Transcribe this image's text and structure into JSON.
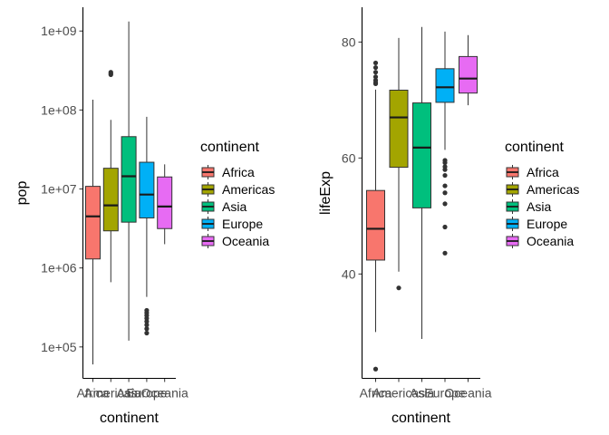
{
  "chart_data": [
    {
      "type": "box",
      "xlabel": "continent",
      "ylabel": "pop",
      "scale": "log10",
      "ylim": [
        40000,
        2000000000
      ],
      "y_ticks": [
        {
          "value": 100000,
          "label": "1e+05"
        },
        {
          "value": 1000000,
          "label": "1e+06"
        },
        {
          "value": 10000000,
          "label": "1e+07"
        },
        {
          "value": 100000000,
          "label": "1e+08"
        },
        {
          "value": 1000000000,
          "label": "1e+09"
        }
      ],
      "categories": [
        "Africa",
        "Americas",
        "Asia",
        "Europe",
        "Oceania"
      ],
      "boxes": [
        {
          "category": "Africa",
          "min": 60000,
          "q1": 1300000,
          "median": 4500000,
          "q3": 10800000,
          "max": 135000000,
          "outliers": []
        },
        {
          "category": "Americas",
          "min": 660000,
          "q1": 2950000,
          "median": 6200000,
          "q3": 18300000,
          "max": 75000000,
          "outliers": [
            280000000,
            290000000,
            301000000
          ]
        },
        {
          "category": "Asia",
          "min": 120000,
          "q1": 3800000,
          "median": 14500000,
          "q3": 46000000,
          "max": 1320000000,
          "outliers": []
        },
        {
          "category": "Europe",
          "min": 430000,
          "q1": 4300000,
          "median": 8500000,
          "q3": 21800000,
          "max": 82000000,
          "outliers": [
            150000,
            170000,
            190000,
            210000,
            230000,
            250000,
            270000,
            290000
          ]
        },
        {
          "category": "Oceania",
          "min": 2000000,
          "q1": 3150000,
          "median": 6000000,
          "q3": 14200000,
          "max": 20500000,
          "outliers": []
        }
      ]
    },
    {
      "type": "box",
      "xlabel": "continent",
      "ylabel": "lifeExp",
      "scale": "linear",
      "ylim": [
        22,
        86
      ],
      "y_ticks": [
        {
          "value": 40,
          "label": "40"
        },
        {
          "value": 60,
          "label": "60"
        },
        {
          "value": 80,
          "label": "80"
        }
      ],
      "categories": [
        "Africa",
        "Americas",
        "Asia",
        "Europe",
        "Oceania"
      ],
      "boxes": [
        {
          "category": "Africa",
          "min": 30.0,
          "q1": 42.4,
          "median": 47.8,
          "q3": 54.4,
          "max": 71.8,
          "outliers": [
            23.6,
            72.8,
            73.0,
            73.4,
            74.0,
            74.8,
            75.6,
            76.4
          ]
        },
        {
          "category": "Americas",
          "min": 40.4,
          "q1": 58.4,
          "median": 67.0,
          "q3": 71.7,
          "max": 80.7,
          "outliers": [
            37.6
          ]
        },
        {
          "category": "Asia",
          "min": 28.8,
          "q1": 51.4,
          "median": 61.8,
          "q3": 69.5,
          "max": 82.6,
          "outliers": []
        },
        {
          "category": "Europe",
          "min": 61.4,
          "q1": 69.6,
          "median": 72.2,
          "q3": 75.4,
          "max": 81.8,
          "outliers": [
            43.6,
            48.1,
            52.1,
            54.0,
            55.2,
            57.0,
            58.0,
            58.5,
            59.2,
            59.6
          ]
        },
        {
          "category": "Oceania",
          "min": 69.1,
          "q1": 71.2,
          "median": 73.7,
          "q3": 77.5,
          "max": 81.2,
          "outliers": []
        }
      ]
    }
  ],
  "legend": {
    "title": "continent",
    "items": [
      {
        "label": "Africa",
        "color": "#F8766D"
      },
      {
        "label": "Americas",
        "color": "#A3A500"
      },
      {
        "label": "Asia",
        "color": "#00BF7D"
      },
      {
        "label": "Europe",
        "color": "#00B0F6"
      },
      {
        "label": "Oceania",
        "color": "#E76BF3"
      }
    ]
  }
}
